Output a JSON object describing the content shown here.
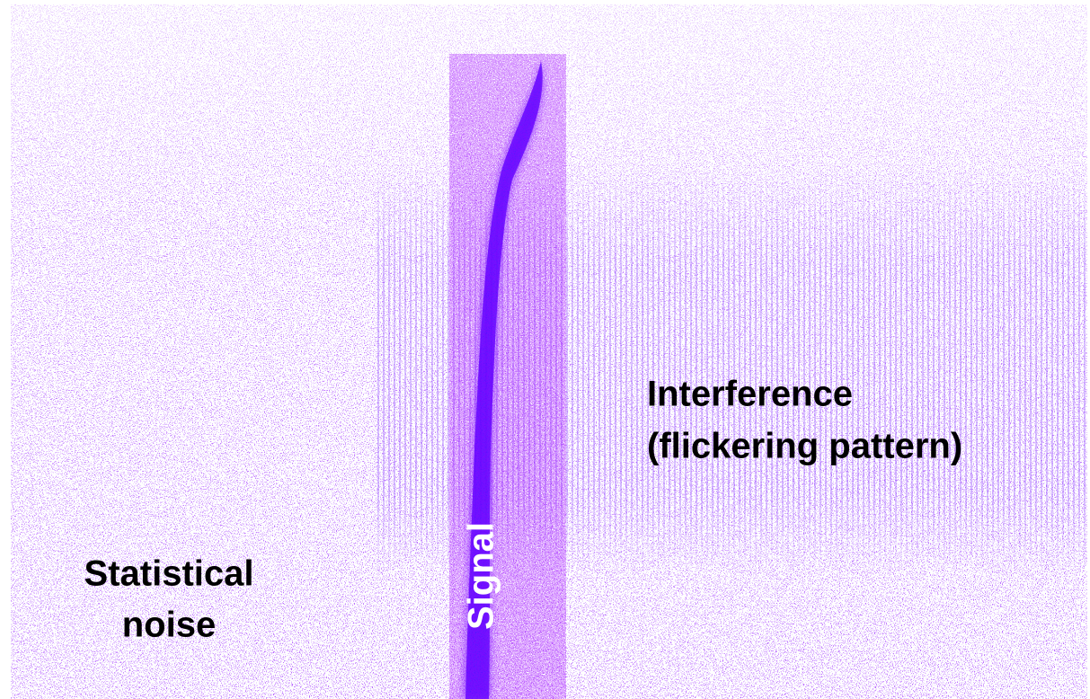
{
  "labels": {
    "noise": [
      "Statistical",
      "noise"
    ],
    "signal": "Signal",
    "interference": [
      "Interference",
      "(flickering pattern)"
    ]
  }
}
